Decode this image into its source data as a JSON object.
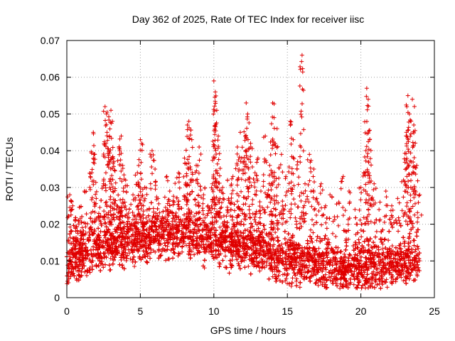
{
  "chart_data": {
    "type": "scatter",
    "title": "Day 362 of 2025, Rate Of TEC Index for receiver iisc",
    "xlabel": "GPS time / hours",
    "ylabel": "ROTI / TECUs",
    "xlim": [
      0,
      25
    ],
    "ylim": [
      0,
      0.07
    ],
    "x_ticks": [
      0,
      5,
      10,
      15,
      20,
      25
    ],
    "y_ticks": [
      0,
      0.01,
      0.02,
      0.03,
      0.04,
      0.05,
      0.06,
      0.07
    ],
    "x_tick_labels": [
      "0",
      "5",
      "10",
      "15",
      "20",
      "25"
    ],
    "y_tick_labels": [
      "0",
      "0.01",
      "0.02",
      "0.03",
      "0.04",
      "0.05",
      "0.06",
      "0.07"
    ],
    "grid": true,
    "legend": "none",
    "marker": "plus",
    "color": "#e00000",
    "series": [
      {
        "points": [
          [
            0.1,
            0.012
          ],
          [
            0.2,
            0.028
          ],
          [
            0.3,
            0.018
          ],
          [
            0.4,
            0.025
          ],
          [
            0.6,
            0.014
          ],
          [
            0.8,
            0.021
          ],
          [
            1.0,
            0.017
          ],
          [
            1.2,
            0.029
          ],
          [
            1.5,
            0.016
          ],
          [
            1.7,
            0.034
          ],
          [
            1.8,
            0.045
          ],
          [
            1.9,
            0.039
          ],
          [
            2.0,
            0.027
          ],
          [
            2.2,
            0.022
          ],
          [
            2.5,
            0.031
          ],
          [
            2.6,
            0.052
          ],
          [
            2.7,
            0.05
          ],
          [
            2.9,
            0.044
          ],
          [
            3.0,
            0.051
          ],
          [
            3.1,
            0.048
          ],
          [
            3.2,
            0.037
          ],
          [
            3.4,
            0.025
          ],
          [
            3.6,
            0.04
          ],
          [
            3.7,
            0.044
          ],
          [
            3.8,
            0.036
          ],
          [
            4.0,
            0.032
          ],
          [
            4.2,
            0.023
          ],
          [
            4.5,
            0.028
          ],
          [
            4.8,
            0.034
          ],
          [
            5.0,
            0.043
          ],
          [
            5.1,
            0.042
          ],
          [
            5.3,
            0.03
          ],
          [
            5.6,
            0.024
          ],
          [
            5.8,
            0.04
          ],
          [
            6.0,
            0.035
          ],
          [
            6.2,
            0.027
          ],
          [
            6.5,
            0.022
          ],
          [
            6.8,
            0.033
          ],
          [
            7.0,
            0.029
          ],
          [
            7.3,
            0.026
          ],
          [
            7.6,
            0.034
          ],
          [
            8.0,
            0.038
          ],
          [
            8.2,
            0.047
          ],
          [
            8.3,
            0.048
          ],
          [
            8.5,
            0.043
          ],
          [
            8.8,
            0.036
          ],
          [
            9.0,
            0.041
          ],
          [
            9.3,
            0.028
          ],
          [
            9.6,
            0.025
          ],
          [
            9.9,
            0.031
          ],
          [
            10.0,
            0.059
          ],
          [
            10.1,
            0.056
          ],
          [
            10.2,
            0.051
          ],
          [
            10.3,
            0.044
          ],
          [
            10.6,
            0.03
          ],
          [
            11.0,
            0.027
          ],
          [
            11.3,
            0.033
          ],
          [
            11.6,
            0.041
          ],
          [
            11.8,
            0.045
          ],
          [
            12.0,
            0.037
          ],
          [
            12.2,
            0.053
          ],
          [
            12.3,
            0.05
          ],
          [
            12.5,
            0.042
          ],
          [
            12.8,
            0.034
          ],
          [
            13.0,
            0.038
          ],
          [
            13.2,
            0.029
          ],
          [
            13.5,
            0.044
          ],
          [
            13.8,
            0.036
          ],
          [
            14.0,
            0.053
          ],
          [
            14.1,
            0.049
          ],
          [
            14.3,
            0.046
          ],
          [
            14.6,
            0.039
          ],
          [
            14.9,
            0.033
          ],
          [
            15.2,
            0.048
          ],
          [
            15.4,
            0.043
          ],
          [
            15.7,
            0.037
          ],
          [
            16.0,
            0.066
          ],
          [
            16.2,
            0.031
          ],
          [
            16.5,
            0.039
          ],
          [
            16.8,
            0.035
          ],
          [
            17.0,
            0.027
          ],
          [
            17.3,
            0.031
          ],
          [
            17.6,
            0.025
          ],
          [
            17.9,
            0.028
          ],
          [
            18.2,
            0.022
          ],
          [
            18.5,
            0.026
          ],
          [
            18.8,
            0.033
          ],
          [
            19.2,
            0.029
          ],
          [
            19.6,
            0.024
          ],
          [
            20.0,
            0.03
          ],
          [
            20.2,
            0.034
          ],
          [
            20.4,
            0.057
          ],
          [
            20.5,
            0.054
          ],
          [
            20.6,
            0.043
          ],
          [
            20.9,
            0.031
          ],
          [
            21.3,
            0.026
          ],
          [
            21.7,
            0.029
          ],
          [
            22.1,
            0.025
          ],
          [
            22.5,
            0.027
          ],
          [
            22.9,
            0.032
          ],
          [
            23.1,
            0.045
          ],
          [
            23.2,
            0.055
          ],
          [
            23.3,
            0.05
          ],
          [
            23.5,
            0.054
          ],
          [
            23.6,
            0.047
          ],
          [
            23.8,
            0.036
          ],
          [
            24.0,
            0.028
          ]
        ]
      }
    ]
  }
}
